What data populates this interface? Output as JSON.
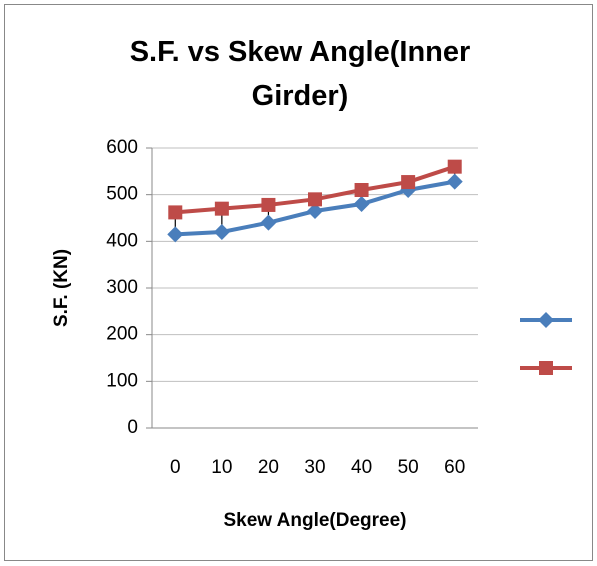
{
  "chart_data": {
    "type": "line",
    "title": "S.F. vs Skew Angle(Inner Girder)",
    "x_label": "Skew Angle(Degree)",
    "y_label": "S.F. (KN)",
    "categories": [
      "0",
      "10",
      "20",
      "30",
      "40",
      "50",
      "60"
    ],
    "series": [
      {
        "color": "#4a7ebb",
        "marker": "diamond",
        "values": [
          415,
          420,
          440,
          465,
          480,
          510,
          528
        ]
      },
      {
        "color": "#be4b48",
        "marker": "square",
        "values": [
          462,
          470,
          478,
          490,
          510,
          527,
          560
        ]
      }
    ],
    "ylim": [
      0,
      600
    ],
    "yticks": [
      0,
      100,
      200,
      300,
      400,
      500,
      600
    ],
    "grid": true,
    "legend": "right"
  }
}
